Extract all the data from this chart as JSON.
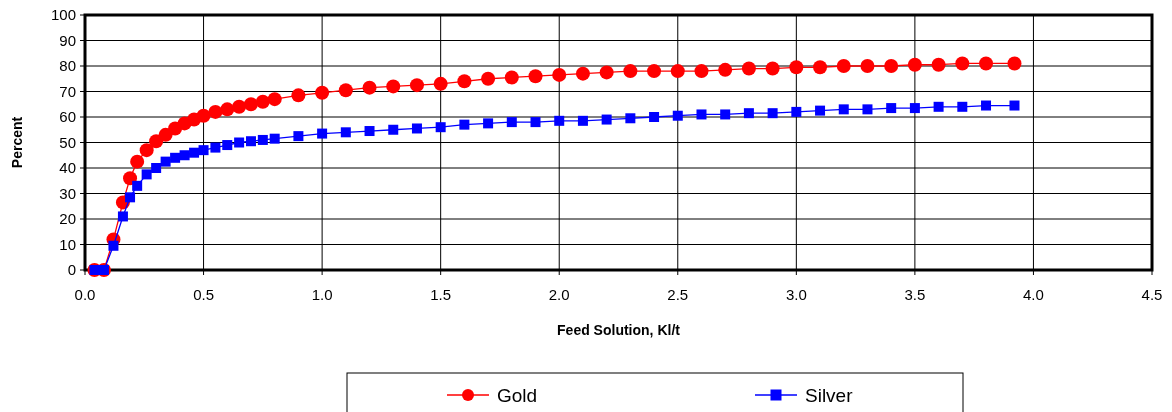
{
  "chart_data": {
    "type": "line",
    "xlabel": "Feed Solution, Kl/t",
    "ylabel": "Percent",
    "xlim": [
      0,
      4.5
    ],
    "xticks": [
      {
        "value": 0,
        "label": "0.0"
      },
      {
        "value": 0.5,
        "label": "0.5"
      },
      {
        "value": 1,
        "label": "1.0"
      },
      {
        "value": 1.5,
        "label": "1.5"
      },
      {
        "value": 2,
        "label": "2.0"
      },
      {
        "value": 2.5,
        "label": "2.5"
      },
      {
        "value": 3,
        "label": "3.0"
      },
      {
        "value": 3.5,
        "label": "3.5"
      },
      {
        "value": 4,
        "label": "4.0"
      },
      {
        "value": 4.5,
        "label": "4.5"
      }
    ],
    "ylim": [
      0,
      100
    ],
    "yticks": [
      0,
      10,
      20,
      30,
      40,
      50,
      60,
      70,
      80,
      90,
      100
    ],
    "grid": true,
    "legend": "bottom",
    "line_style": "solid",
    "x": [
      0.04,
      0.08,
      0.12,
      0.16,
      0.19,
      0.22,
      0.26,
      0.3,
      0.34,
      0.38,
      0.42,
      0.46,
      0.5,
      0.55,
      0.6,
      0.65,
      0.7,
      0.75,
      0.8,
      0.9,
      1.0,
      1.1,
      1.2,
      1.3,
      1.4,
      1.5,
      1.6,
      1.7,
      1.8,
      1.9,
      2.0,
      2.1,
      2.2,
      2.3,
      2.4,
      2.5,
      2.6,
      2.7,
      2.8,
      2.9,
      3.0,
      3.1,
      3.2,
      3.3,
      3.4,
      3.5,
      3.6,
      3.7,
      3.8,
      3.92
    ],
    "series": [
      {
        "name": "Gold",
        "color": "#ff0000",
        "marker": "circle",
        "values": [
          0,
          0,
          12,
          26.5,
          36,
          42.5,
          47,
          50.5,
          53,
          55.5,
          57.5,
          59,
          60.5,
          62,
          63,
          64,
          65,
          66,
          67,
          68.5,
          69.5,
          70.5,
          71.5,
          72,
          72.5,
          73,
          74,
          75,
          75.5,
          76,
          76.5,
          77,
          77.5,
          78,
          78,
          78,
          78,
          78.5,
          79,
          79,
          79.5,
          79.5,
          80,
          80,
          80,
          80.5,
          80.5,
          81,
          81,
          81
        ]
      },
      {
        "name": "Silver",
        "color": "#0000ff",
        "marker": "square",
        "values": [
          0,
          0,
          9.5,
          21,
          28.5,
          33,
          37.5,
          40,
          42.5,
          44,
          45,
          46,
          47,
          48,
          49,
          50,
          50.5,
          51,
          51.5,
          52.5,
          53.5,
          54,
          54.5,
          55,
          55.5,
          56,
          57,
          57.5,
          58,
          58,
          58.5,
          58.5,
          59,
          59.5,
          60,
          60.5,
          61,
          61,
          61.5,
          61.5,
          62,
          62.5,
          63,
          63,
          63.5,
          63.5,
          64,
          64,
          64.5,
          64.5
        ]
      }
    ]
  }
}
